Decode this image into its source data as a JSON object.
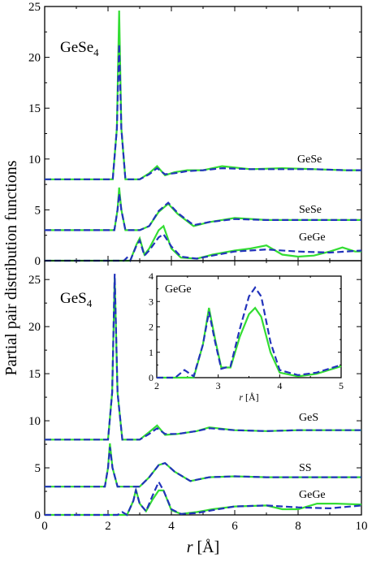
{
  "chart_data": [
    {
      "type": "line",
      "panel": "top",
      "title": "GeSe4",
      "title_main": "GeSe",
      "title_sub": "4",
      "xlim": [
        0,
        10
      ],
      "ylim": [
        0,
        25
      ],
      "yticks": [
        0,
        5,
        10,
        15,
        20,
        25
      ],
      "xticks": [
        0,
        2,
        4,
        6,
        8,
        10
      ],
      "ylabel": "Partial pair distribution functions",
      "series_colors": {
        "solid": "#33dd33",
        "dashed": "#2233bb"
      },
      "curves": [
        {
          "label": "GeSe",
          "offset": 8,
          "solid": [
            [
              0,
              0
            ],
            [
              2.15,
              0
            ],
            [
              2.28,
              5
            ],
            [
              2.35,
              16.6
            ],
            [
              2.42,
              5
            ],
            [
              2.55,
              0
            ],
            [
              3.0,
              0
            ],
            [
              3.3,
              0.6
            ],
            [
              3.55,
              1.3
            ],
            [
              3.8,
              0.4
            ],
            [
              4.1,
              0.7
            ],
            [
              4.5,
              0.9
            ],
            [
              5.0,
              0.9
            ],
            [
              5.6,
              1.3
            ],
            [
              6.5,
              1.0
            ],
            [
              7.5,
              1.1
            ],
            [
              8.5,
              1.0
            ],
            [
              9.5,
              0.9
            ],
            [
              10,
              0.9
            ]
          ],
          "dashed": [
            [
              0,
              0
            ],
            [
              2.15,
              0
            ],
            [
              2.28,
              5
            ],
            [
              2.35,
              13.3
            ],
            [
              2.42,
              5
            ],
            [
              2.55,
              0
            ],
            [
              3.0,
              0
            ],
            [
              3.3,
              0.5
            ],
            [
              3.55,
              1.1
            ],
            [
              3.8,
              0.5
            ],
            [
              4.1,
              0.6
            ],
            [
              4.5,
              0.8
            ],
            [
              5.0,
              0.9
            ],
            [
              5.6,
              1.1
            ],
            [
              6.5,
              1.0
            ],
            [
              7.5,
              1.0
            ],
            [
              8.5,
              1.0
            ],
            [
              9.5,
              0.9
            ],
            [
              10,
              0.9
            ]
          ]
        },
        {
          "label": "SeSe",
          "offset": 3,
          "solid": [
            [
              0,
              0
            ],
            [
              2.2,
              0
            ],
            [
              2.3,
              2
            ],
            [
              2.35,
              4.2
            ],
            [
              2.42,
              2
            ],
            [
              2.55,
              0
            ],
            [
              3.0,
              0
            ],
            [
              3.3,
              0.4
            ],
            [
              3.6,
              1.8
            ],
            [
              3.9,
              2.6
            ],
            [
              4.2,
              1.6
            ],
            [
              4.7,
              0.4
            ],
            [
              5.2,
              0.8
            ],
            [
              6.0,
              1.2
            ],
            [
              7.0,
              1.0
            ],
            [
              8.0,
              1.0
            ],
            [
              9.0,
              1.0
            ],
            [
              10,
              1.0
            ]
          ],
          "dashed": [
            [
              0,
              0
            ],
            [
              2.2,
              0
            ],
            [
              2.3,
              2
            ],
            [
              2.35,
              3.6
            ],
            [
              2.42,
              2
            ],
            [
              2.55,
              0
            ],
            [
              3.0,
              0
            ],
            [
              3.3,
              0.4
            ],
            [
              3.6,
              1.9
            ],
            [
              3.9,
              2.7
            ],
            [
              4.2,
              1.7
            ],
            [
              4.7,
              0.5
            ],
            [
              5.2,
              0.8
            ],
            [
              6.0,
              1.1
            ],
            [
              7.0,
              1.0
            ],
            [
              8.0,
              1.0
            ],
            [
              9.0,
              1.0
            ],
            [
              10,
              1.0
            ]
          ]
        },
        {
          "label": "GeGe",
          "offset": 0,
          "solid": [
            [
              0,
              0
            ],
            [
              2.7,
              0
            ],
            [
              2.9,
              1.6
            ],
            [
              3.0,
              2.2
            ],
            [
              3.15,
              0.6
            ],
            [
              3.3,
              1.2
            ],
            [
              3.6,
              3.0
            ],
            [
              3.75,
              3.4
            ],
            [
              4.0,
              1.2
            ],
            [
              4.3,
              0.3
            ],
            [
              4.8,
              0.2
            ],
            [
              5.3,
              0.6
            ],
            [
              6.0,
              1.0
            ],
            [
              6.5,
              1.2
            ],
            [
              7.0,
              1.5
            ],
            [
              7.5,
              0.6
            ],
            [
              8.0,
              0.4
            ],
            [
              8.5,
              0.5
            ],
            [
              9.0,
              0.9
            ],
            [
              9.4,
              1.3
            ],
            [
              9.8,
              0.9
            ],
            [
              10,
              0.9
            ]
          ],
          "dashed": [
            [
              0,
              0
            ],
            [
              2.5,
              0
            ],
            [
              2.6,
              0.3
            ],
            [
              2.7,
              0
            ],
            [
              2.9,
              1.5
            ],
            [
              3.0,
              2.0
            ],
            [
              3.15,
              0.5
            ],
            [
              3.3,
              1.0
            ],
            [
              3.6,
              2.3
            ],
            [
              3.75,
              2.6
            ],
            [
              4.0,
              1.4
            ],
            [
              4.3,
              0.4
            ],
            [
              4.8,
              0.2
            ],
            [
              5.3,
              0.5
            ],
            [
              6.0,
              0.9
            ],
            [
              7.0,
              1.1
            ],
            [
              8.0,
              0.9
            ],
            [
              9.0,
              0.8
            ],
            [
              10,
              1.0
            ]
          ]
        }
      ]
    },
    {
      "type": "line",
      "panel": "bottom",
      "title": "GeS4",
      "title_main": "GeS",
      "title_sub": "4",
      "xlim": [
        0,
        10
      ],
      "ylim": [
        0,
        27
      ],
      "yticks": [
        0,
        5,
        10,
        15,
        20,
        25
      ],
      "xticks": [
        0,
        2,
        4,
        6,
        8,
        10
      ],
      "xlabel_var": "r",
      "xlabel_unit": " [Å]",
      "series_colors": {
        "solid": "#33dd33",
        "dashed": "#2233bb"
      },
      "curves": [
        {
          "label": "GeS",
          "offset": 8,
          "solid": [
            [
              0,
              0
            ],
            [
              2.0,
              0
            ],
            [
              2.13,
              5
            ],
            [
              2.21,
              17.2
            ],
            [
              2.3,
              5
            ],
            [
              2.45,
              0
            ],
            [
              3.0,
              0
            ],
            [
              3.3,
              0.8
            ],
            [
              3.55,
              1.5
            ],
            [
              3.8,
              0.5
            ],
            [
              4.2,
              0.6
            ],
            [
              4.8,
              0.9
            ],
            [
              5.2,
              1.3
            ],
            [
              6.0,
              1.0
            ],
            [
              7.0,
              0.9
            ],
            [
              8.0,
              1.0
            ],
            [
              9.0,
              1.0
            ],
            [
              10,
              1.0
            ]
          ],
          "dashed": [
            [
              0,
              0
            ],
            [
              2.0,
              0
            ],
            [
              2.13,
              5
            ],
            [
              2.21,
              17.6
            ],
            [
              2.3,
              5
            ],
            [
              2.45,
              0
            ],
            [
              3.0,
              0
            ],
            [
              3.3,
              0.6
            ],
            [
              3.55,
              1.2
            ],
            [
              3.8,
              0.6
            ],
            [
              4.2,
              0.6
            ],
            [
              4.8,
              0.9
            ],
            [
              5.2,
              1.2
            ],
            [
              6.0,
              1.0
            ],
            [
              7.0,
              0.9
            ],
            [
              8.0,
              1.0
            ],
            [
              9.0,
              1.0
            ],
            [
              10,
              1.0
            ]
          ]
        },
        {
          "label": "SS",
          "offset": 3,
          "solid": [
            [
              0,
              0
            ],
            [
              1.9,
              0
            ],
            [
              2.0,
              2
            ],
            [
              2.06,
              4.6
            ],
            [
              2.14,
              2
            ],
            [
              2.3,
              0
            ],
            [
              3.0,
              0
            ],
            [
              3.3,
              1.0
            ],
            [
              3.6,
              2.3
            ],
            [
              3.8,
              2.5
            ],
            [
              4.1,
              1.6
            ],
            [
              4.6,
              0.6
            ],
            [
              5.2,
              1.0
            ],
            [
              6.0,
              1.1
            ],
            [
              7.0,
              1.0
            ],
            [
              8.0,
              1.0
            ],
            [
              9.0,
              1.0
            ],
            [
              10,
              1.0
            ]
          ],
          "dashed": [
            [
              0,
              0
            ],
            [
              1.9,
              0
            ],
            [
              2.0,
              2
            ],
            [
              2.06,
              4.2
            ],
            [
              2.14,
              2
            ],
            [
              2.3,
              0
            ],
            [
              3.0,
              0
            ],
            [
              3.3,
              1.0
            ],
            [
              3.6,
              2.3
            ],
            [
              3.8,
              2.5
            ],
            [
              4.1,
              1.6
            ],
            [
              4.6,
              0.6
            ],
            [
              5.2,
              1.0
            ],
            [
              6.0,
              1.1
            ],
            [
              7.0,
              1.0
            ],
            [
              8.0,
              1.0
            ],
            [
              9.0,
              1.0
            ],
            [
              10,
              1.0
            ]
          ]
        },
        {
          "label": "GeGe",
          "offset": 0,
          "solid": [
            [
              0,
              0
            ],
            [
              2.6,
              0
            ],
            [
              2.8,
              1.5
            ],
            [
              2.88,
              2.7
            ],
            [
              3.0,
              1.2
            ],
            [
              3.2,
              0.4
            ],
            [
              3.4,
              1.6
            ],
            [
              3.6,
              2.6
            ],
            [
              3.75,
              2.6
            ],
            [
              4.0,
              0.5
            ],
            [
              4.3,
              0.1
            ],
            [
              4.8,
              0.3
            ],
            [
              5.3,
              0.6
            ],
            [
              6.0,
              0.9
            ],
            [
              7.0,
              1.0
            ],
            [
              7.5,
              0.6
            ],
            [
              8.0,
              0.6
            ],
            [
              8.6,
              1.2
            ],
            [
              9.2,
              1.2
            ],
            [
              10,
              1.1
            ]
          ],
          "dashed": [
            [
              0,
              0
            ],
            [
              2.3,
              0
            ],
            [
              2.45,
              0.3
            ],
            [
              2.6,
              0
            ],
            [
              2.8,
              1.5
            ],
            [
              2.88,
              2.6
            ],
            [
              3.0,
              1.2
            ],
            [
              3.2,
              0.4
            ],
            [
              3.4,
              2.0
            ],
            [
              3.6,
              3.5
            ],
            [
              3.75,
              2.6
            ],
            [
              4.0,
              0.6
            ],
            [
              4.3,
              0.1
            ],
            [
              4.8,
              0.2
            ],
            [
              5.3,
              0.5
            ],
            [
              6.0,
              0.9
            ],
            [
              7.0,
              1.0
            ],
            [
              8.0,
              0.8
            ],
            [
              9.0,
              0.7
            ],
            [
              10,
              1.0
            ]
          ]
        }
      ]
    },
    {
      "type": "line",
      "panel": "inset",
      "title": "GeGe",
      "xlim": [
        2,
        5
      ],
      "ylim": [
        0,
        4
      ],
      "xticks": [
        2,
        3,
        4,
        5
      ],
      "yticks": [
        0,
        1,
        2,
        3,
        4
      ],
      "xlabel_var": "r",
      "xlabel_unit": " [Å]",
      "series_colors": {
        "solid": "#33dd33",
        "dashed": "#2233bb"
      },
      "solid": [
        [
          2.0,
          0
        ],
        [
          2.6,
          0
        ],
        [
          2.75,
          1.3
        ],
        [
          2.85,
          2.75
        ],
        [
          2.95,
          1.5
        ],
        [
          3.05,
          0.4
        ],
        [
          3.2,
          0.4
        ],
        [
          3.35,
          1.6
        ],
        [
          3.5,
          2.5
        ],
        [
          3.6,
          2.75
        ],
        [
          3.7,
          2.4
        ],
        [
          3.85,
          1.0
        ],
        [
          4.0,
          0.2
        ],
        [
          4.3,
          0.05
        ],
        [
          4.6,
          0.15
        ],
        [
          5.0,
          0.45
        ]
      ],
      "dashed": [
        [
          2.0,
          0
        ],
        [
          2.3,
          0
        ],
        [
          2.45,
          0.3
        ],
        [
          2.6,
          0.05
        ],
        [
          2.75,
          1.3
        ],
        [
          2.85,
          2.6
        ],
        [
          2.95,
          1.4
        ],
        [
          3.05,
          0.35
        ],
        [
          3.2,
          0.45
        ],
        [
          3.35,
          1.9
        ],
        [
          3.5,
          3.2
        ],
        [
          3.6,
          3.55
        ],
        [
          3.7,
          3.2
        ],
        [
          3.85,
          1.4
        ],
        [
          4.0,
          0.3
        ],
        [
          4.3,
          0.1
        ],
        [
          4.6,
          0.2
        ],
        [
          5.0,
          0.5
        ]
      ]
    }
  ]
}
